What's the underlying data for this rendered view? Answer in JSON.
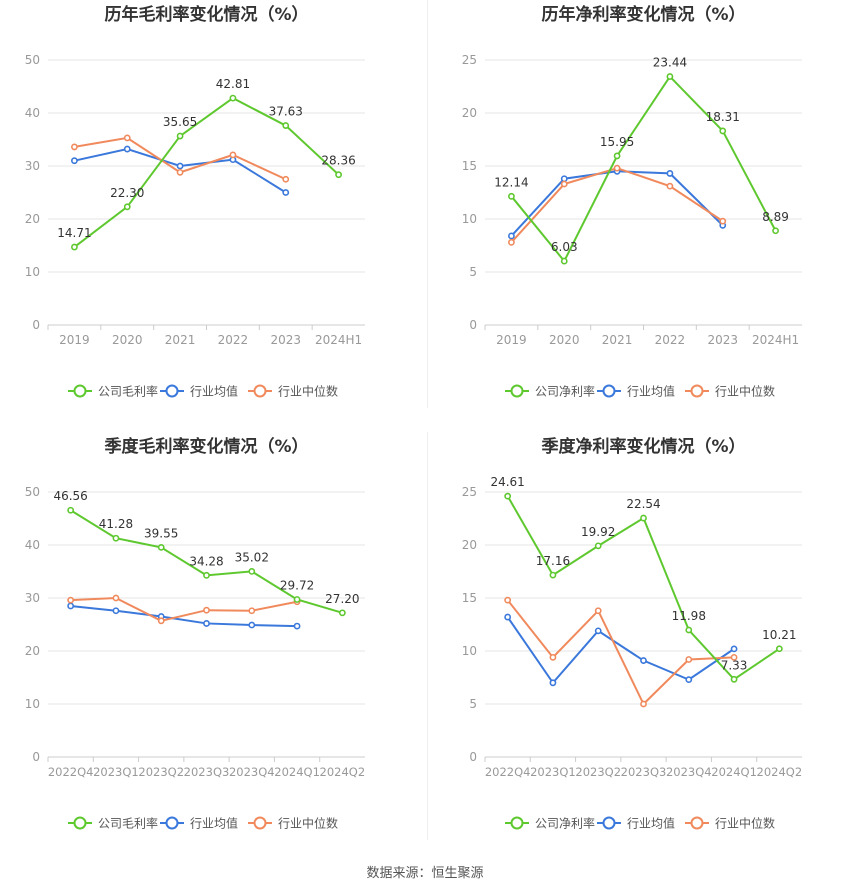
{
  "source_label": "数据来源：恒生聚源",
  "colors": {
    "company": "#5ec82f",
    "industry_avg": "#3b78db",
    "industry_median": "#f08a5d",
    "grid": "#e6e6e6",
    "axis_text": "#999999",
    "title": "#333333"
  },
  "chart_data": [
    {
      "type": "line",
      "title": "历年毛利率变化情况（%）",
      "categories": [
        "2019",
        "2020",
        "2021",
        "2022",
        "2023",
        "2024H1"
      ],
      "ylim": [
        0,
        50
      ],
      "yticks": [
        0,
        10,
        20,
        30,
        40,
        50
      ],
      "series": [
        {
          "name": "公司毛利率",
          "key": "company",
          "values": [
            14.71,
            22.3,
            35.65,
            42.81,
            37.63,
            28.36
          ],
          "labels": [
            "14.71",
            "22.30",
            "35.65",
            "42.81",
            "37.63",
            "28.36"
          ]
        },
        {
          "name": "行业均值",
          "key": "industry_avg",
          "values": [
            31.0,
            33.2,
            30.0,
            31.2,
            25.0,
            null
          ]
        },
        {
          "name": "行业中位数",
          "key": "industry_median",
          "values": [
            33.6,
            35.3,
            28.8,
            32.1,
            27.5,
            null
          ]
        }
      ],
      "legend": "bottom"
    },
    {
      "type": "line",
      "title": "历年净利率变化情况（%）",
      "categories": [
        "2019",
        "2020",
        "2021",
        "2022",
        "2023",
        "2024H1"
      ],
      "ylim": [
        0,
        25
      ],
      "yticks": [
        0,
        5,
        10,
        15,
        20,
        25
      ],
      "series": [
        {
          "name": "公司净利率",
          "key": "company",
          "values": [
            12.14,
            6.03,
            15.95,
            23.44,
            18.31,
            8.89
          ],
          "labels": [
            "12.14",
            "6.03",
            "15.95",
            "23.44",
            "18.31",
            "8.89"
          ]
        },
        {
          "name": "行业均值",
          "key": "industry_avg",
          "values": [
            8.4,
            13.8,
            14.5,
            14.3,
            9.4,
            null
          ]
        },
        {
          "name": "行业中位数",
          "key": "industry_median",
          "values": [
            7.8,
            13.3,
            14.8,
            13.1,
            9.8,
            null
          ]
        }
      ],
      "legend": "bottom"
    },
    {
      "type": "line",
      "title": "季度毛利率变化情况（%）",
      "categories": [
        "2022Q4",
        "2023Q1",
        "2023Q2",
        "2023Q3",
        "2023Q4",
        "2024Q1",
        "2024Q2"
      ],
      "ylim": [
        0,
        50
      ],
      "yticks": [
        0,
        10,
        20,
        30,
        40,
        50
      ],
      "series": [
        {
          "name": "公司毛利率",
          "key": "company",
          "values": [
            46.56,
            41.28,
            39.55,
            34.28,
            35.02,
            29.72,
            27.2
          ],
          "labels": [
            "46.56",
            "41.28",
            "39.55",
            "34.28",
            "35.02",
            "29.72",
            "27.20"
          ]
        },
        {
          "name": "行业均值",
          "key": "industry_avg",
          "values": [
            28.5,
            27.6,
            26.5,
            25.2,
            24.9,
            24.7,
            null
          ]
        },
        {
          "name": "行业中位数",
          "key": "industry_median",
          "values": [
            29.6,
            30.0,
            25.7,
            27.7,
            27.6,
            29.3,
            null
          ]
        }
      ],
      "legend": "bottom"
    },
    {
      "type": "line",
      "title": "季度净利率变化情况（%）",
      "categories": [
        "2022Q4",
        "2023Q1",
        "2023Q2",
        "2023Q3",
        "2023Q4",
        "2024Q1",
        "2024Q2"
      ],
      "ylim": [
        0,
        25
      ],
      "yticks": [
        0,
        5,
        10,
        15,
        20,
        25
      ],
      "series": [
        {
          "name": "公司净利率",
          "key": "company",
          "values": [
            24.61,
            17.16,
            19.92,
            22.54,
            11.98,
            7.33,
            10.21
          ],
          "labels": [
            "24.61",
            "17.16",
            "19.92",
            "22.54",
            "11.98",
            "7.33",
            "10.21"
          ]
        },
        {
          "name": "行业均值",
          "key": "industry_avg",
          "values": [
            13.2,
            7.0,
            11.9,
            9.1,
            7.3,
            10.2,
            null
          ]
        },
        {
          "name": "行业中位数",
          "key": "industry_median",
          "values": [
            14.8,
            9.4,
            13.8,
            5.0,
            9.2,
            9.4,
            null
          ]
        }
      ],
      "legend": "bottom"
    }
  ]
}
